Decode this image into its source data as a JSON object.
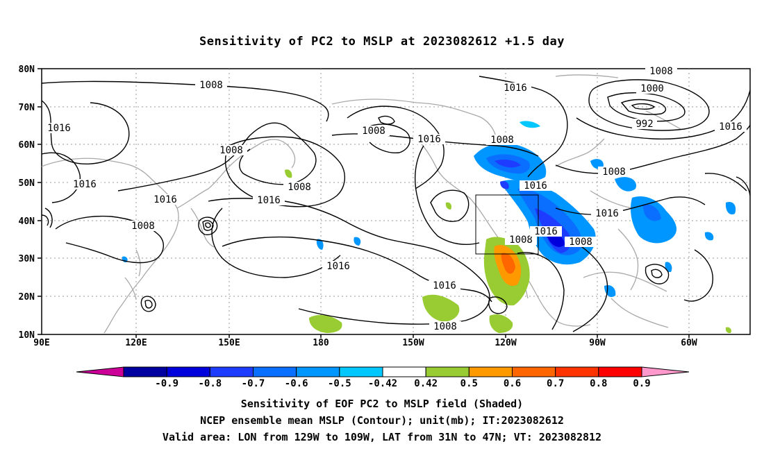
{
  "title": "Sensitivity of PC2 to MSLP at 2023082612 +1.5 day",
  "lat_labels": [
    "80N",
    "70N",
    "60N",
    "50N",
    "40N",
    "30N",
    "20N",
    "10N"
  ],
  "lon_labels": [
    "90E",
    "120E",
    "150E",
    "180",
    "150W",
    "120W",
    "90W",
    "60W"
  ],
  "contour_labels": [
    "1008",
    "1000",
    "992",
    "1016",
    "1016",
    "1008",
    "1008",
    "1016",
    "1008",
    "1008",
    "1016",
    "1016",
    "1008",
    "1016",
    "1016",
    "1016",
    "1008",
    "1016",
    "1008",
    "1008",
    "1016",
    "1016",
    "1008"
  ],
  "colorbar": {
    "labels": [
      "-0.9",
      "-0.8",
      "-0.7",
      "-0.6",
      "-0.5",
      "-0.42",
      "0.42",
      "0.5",
      "0.6",
      "0.7",
      "0.8",
      "0.9"
    ],
    "colors": [
      "#cc0099",
      "#0000a0",
      "#0000dd",
      "#1e3cff",
      "#0a6eff",
      "#0096ff",
      "#00c8ff",
      "#ffffff",
      "#99cc33",
      "#ff9900",
      "#ff6600",
      "#ff3300",
      "#ff0000",
      "#ff99cc"
    ]
  },
  "captions": [
    "Sensitivity of EOF PC2 to MSLP field (Shaded)",
    "NCEP ensemble mean MSLP (Contour); unit(mb); IT:2023082612",
    "Valid area: LON from 129W to 109W, LAT from 31N to 47N; VT: 2023082812"
  ]
}
